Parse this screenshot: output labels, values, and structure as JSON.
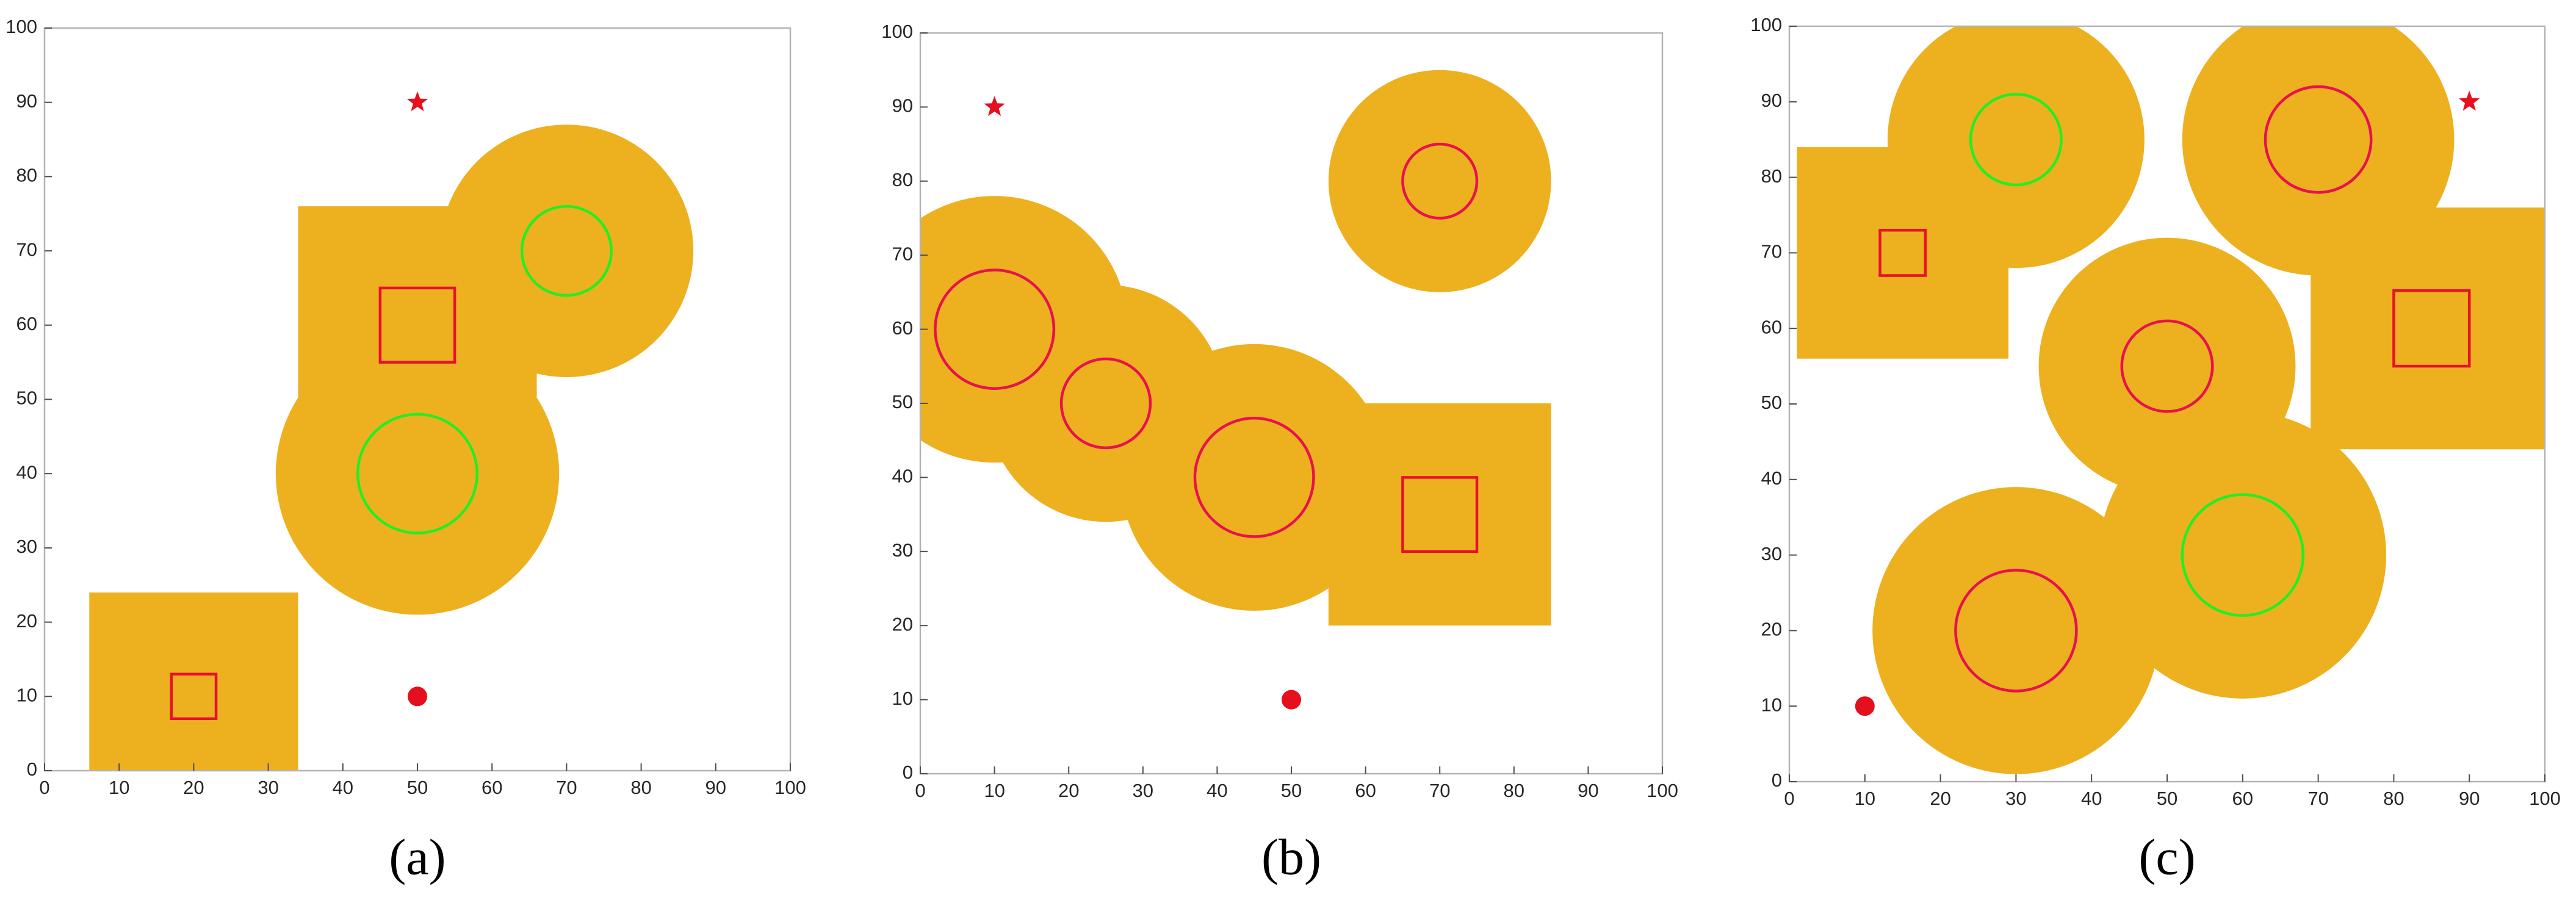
{
  "chart_data": [
    {
      "type": "map",
      "label": "(a)",
      "xlim": [
        0,
        100
      ],
      "ylim": [
        0,
        100
      ],
      "xticks": [
        0,
        10,
        20,
        30,
        40,
        50,
        60,
        70,
        80,
        90,
        100
      ],
      "yticks": [
        0,
        10,
        20,
        30,
        40,
        50,
        60,
        70,
        80,
        90,
        100
      ],
      "margin": 11,
      "region_color": "#edb120",
      "start": {
        "x": 50,
        "y": 10,
        "color": "#e60f1e"
      },
      "goal": {
        "x": 50,
        "y": 90,
        "color": "#e60f1e"
      },
      "obstacles": [
        {
          "shape": "square",
          "x": 20,
          "y": 10,
          "r": 3,
          "color": "#e8112d"
        },
        {
          "shape": "square",
          "x": 50,
          "y": 60,
          "r": 5,
          "color": "#e8112d"
        },
        {
          "shape": "circle",
          "x": 50,
          "y": 40,
          "r": 8,
          "color": "#22ee22"
        },
        {
          "shape": "circle",
          "x": 70,
          "y": 70,
          "r": 6,
          "color": "#22ee22"
        }
      ]
    },
    {
      "type": "map",
      "label": "(b)",
      "xlim": [
        0,
        100
      ],
      "ylim": [
        0,
        100
      ],
      "xticks": [
        0,
        10,
        20,
        30,
        40,
        50,
        60,
        70,
        80,
        90,
        100
      ],
      "yticks": [
        0,
        10,
        20,
        30,
        40,
        50,
        60,
        70,
        80,
        90,
        100
      ],
      "margin": 10,
      "region_color": "#edb120",
      "start": {
        "x": 50,
        "y": 10,
        "color": "#e60f1e"
      },
      "goal": {
        "x": 10,
        "y": 90,
        "color": "#e60f1e"
      },
      "obstacles": [
        {
          "shape": "circle",
          "x": 10,
          "y": 60,
          "r": 8,
          "color": "#e8114d"
        },
        {
          "shape": "circle",
          "x": 25,
          "y": 50,
          "r": 6,
          "color": "#e8114d"
        },
        {
          "shape": "circle",
          "x": 45,
          "y": 40,
          "r": 8,
          "color": "#e8114d"
        },
        {
          "shape": "circle",
          "x": 70,
          "y": 80,
          "r": 5,
          "color": "#e8114d"
        },
        {
          "shape": "square",
          "x": 70,
          "y": 35,
          "r": 5,
          "color": "#e8112d"
        }
      ]
    },
    {
      "type": "map",
      "label": "(c)",
      "xlim": [
        0,
        100
      ],
      "ylim": [
        0,
        100
      ],
      "xticks": [
        0,
        10,
        20,
        30,
        40,
        50,
        60,
        70,
        80,
        90,
        100
      ],
      "yticks": [
        0,
        10,
        20,
        30,
        40,
        50,
        60,
        70,
        80,
        90,
        100
      ],
      "margin": 11,
      "region_color": "#edb120",
      "start": {
        "x": 10,
        "y": 10,
        "color": "#e60f1e"
      },
      "goal": {
        "x": 90,
        "y": 90,
        "color": "#e60f1e"
      },
      "obstacles": [
        {
          "shape": "square",
          "x": 15,
          "y": 70,
          "r": 3,
          "color": "#e8112d"
        },
        {
          "shape": "circle",
          "x": 30,
          "y": 85,
          "r": 6,
          "color": "#22ee22"
        },
        {
          "shape": "circle",
          "x": 70,
          "y": 85,
          "r": 7,
          "color": "#e8114d"
        },
        {
          "shape": "square",
          "x": 85,
          "y": 60,
          "r": 5,
          "color": "#e8112d"
        },
        {
          "shape": "circle",
          "x": 50,
          "y": 55,
          "r": 6,
          "color": "#e8114d"
        },
        {
          "shape": "circle",
          "x": 60,
          "y": 30,
          "r": 8,
          "color": "#22ee22"
        },
        {
          "shape": "circle",
          "x": 30,
          "y": 20,
          "r": 8,
          "color": "#e8114d"
        }
      ]
    }
  ]
}
